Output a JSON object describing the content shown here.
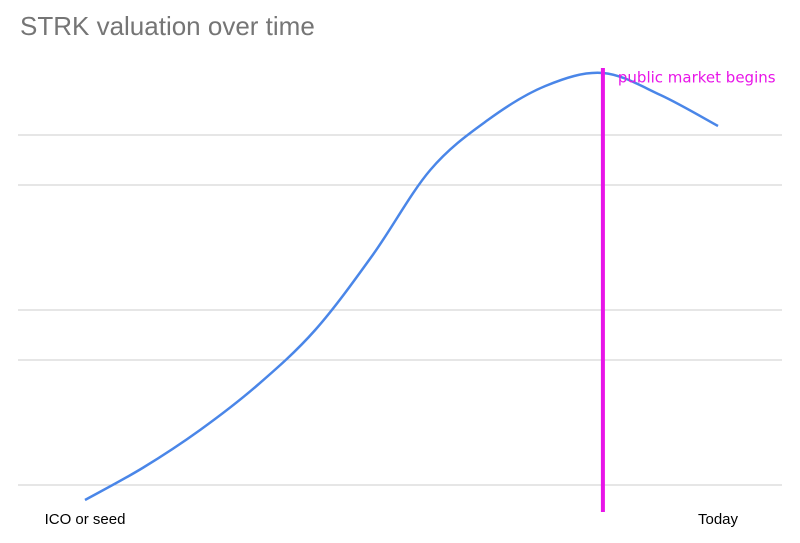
{
  "chart_data": {
    "type": "line",
    "title": "STRK valuation over time",
    "categories": [
      "ICO or seed",
      null,
      null,
      null,
      null,
      null,
      null,
      null,
      null,
      null,
      null,
      "Today"
    ],
    "series": [
      {
        "color": "#4a86e8",
        "values": [
          1,
          4.2,
          8,
          12.5,
          18,
          25.5,
          34,
          39,
          42.4,
          43.7,
          41.5,
          38.4
        ]
      }
    ],
    "ylim": [
      0,
      44
    ],
    "yticks": [
      2.5,
      15,
      20,
      32.5,
      37.5
    ],
    "grid": true,
    "annotation": {
      "text": "public market begins",
      "category_index": 9,
      "color": "#e815e8"
    }
  }
}
